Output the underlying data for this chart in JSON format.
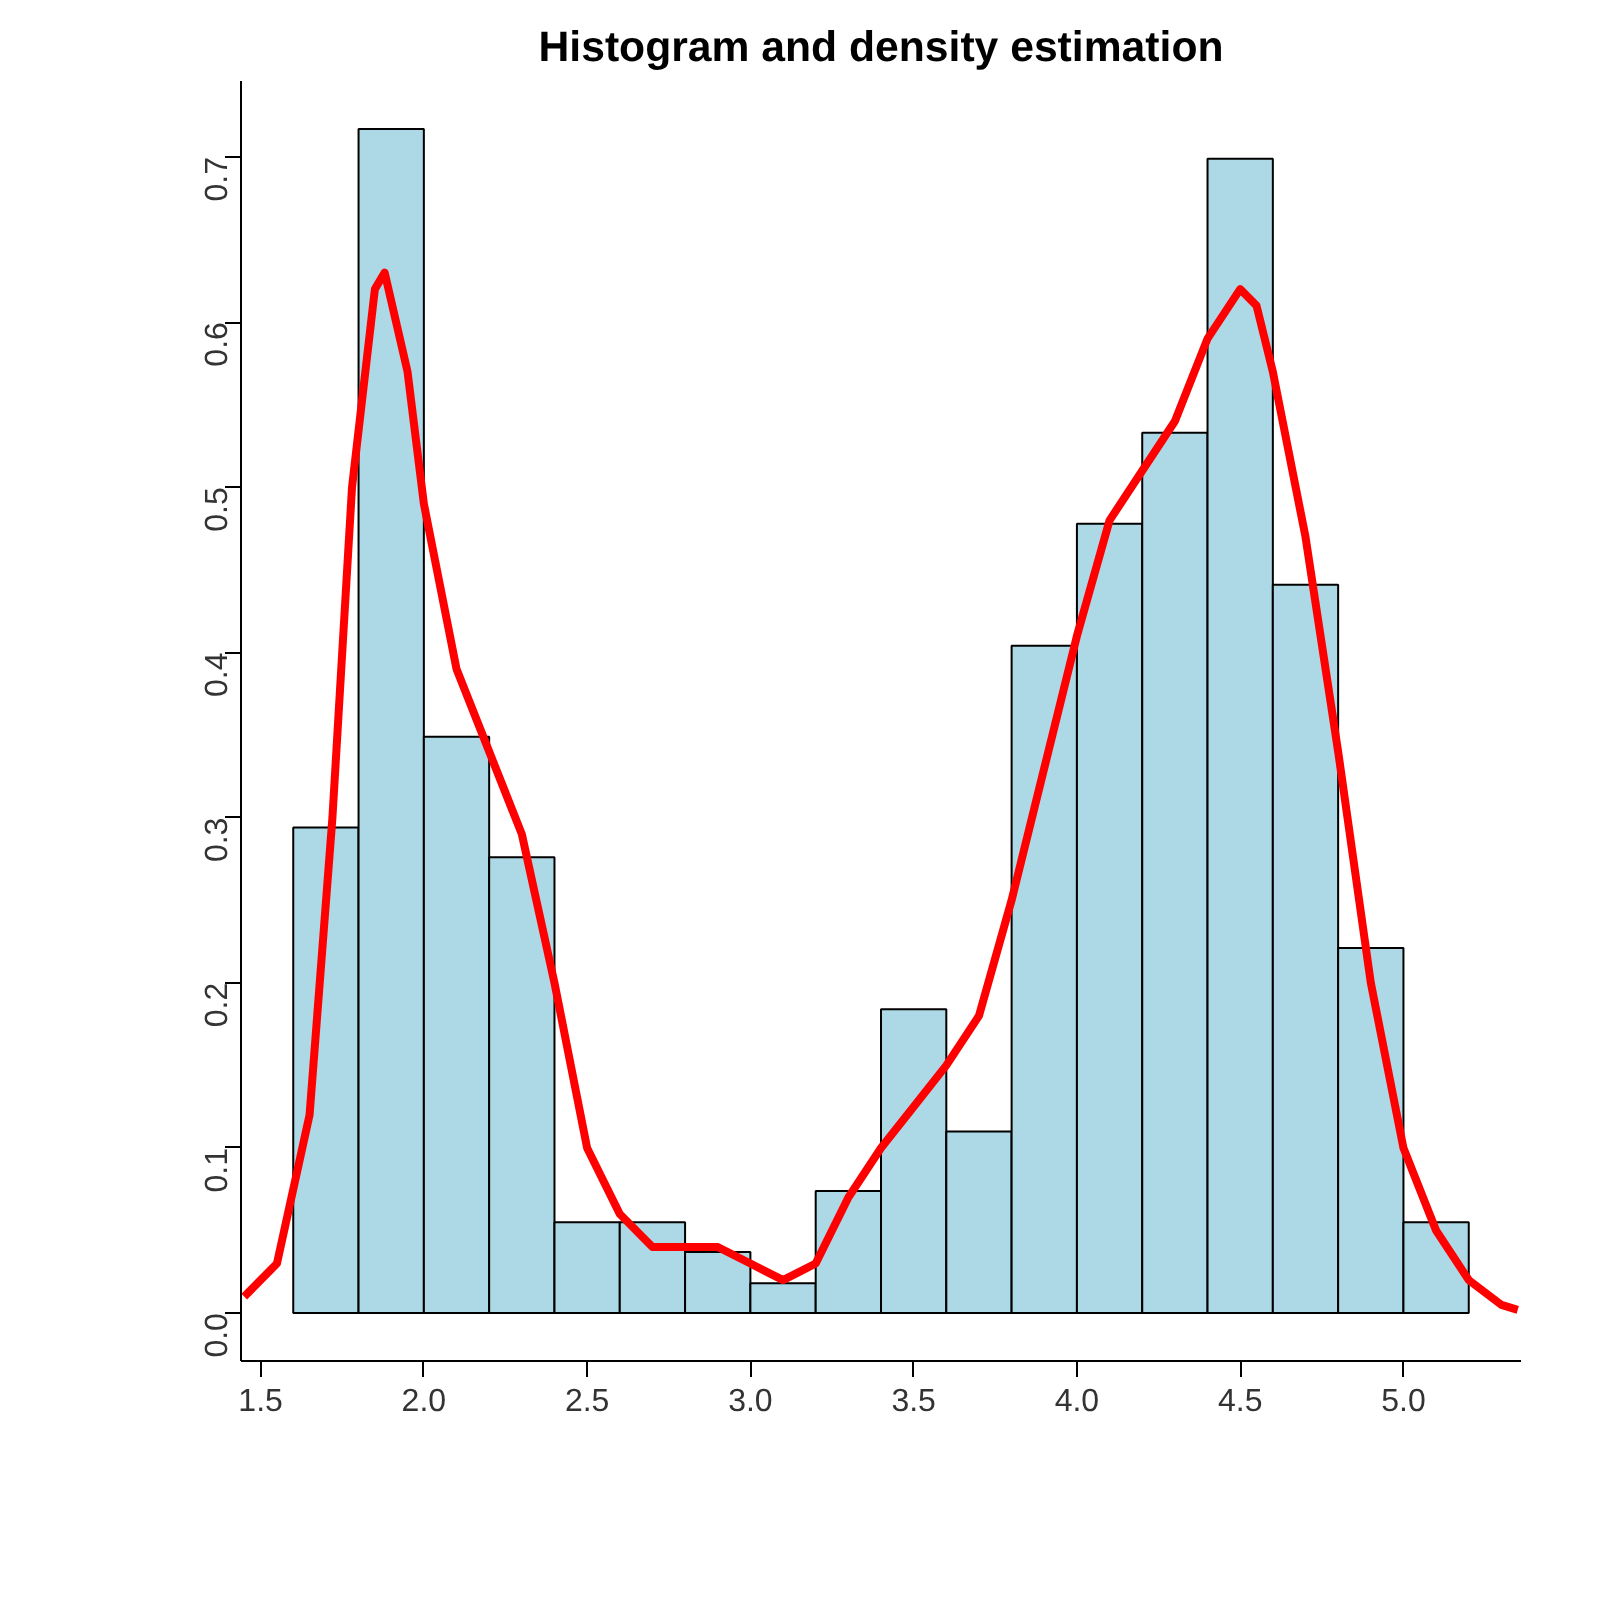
{
  "chart_data": {
    "type": "histogram",
    "title": "Histogram and density estimation",
    "bins": [
      1.6,
      1.8,
      2.0,
      2.2,
      2.4,
      2.6,
      2.8,
      3.0,
      3.2,
      3.4,
      3.6,
      3.8,
      4.0,
      4.2,
      4.4,
      4.6,
      4.8,
      5.0,
      5.2
    ],
    "values": [
      0.294,
      0.717,
      0.349,
      0.276,
      0.055,
      0.055,
      0.037,
      0.018,
      0.074,
      0.184,
      0.11,
      0.404,
      0.478,
      0.533,
      0.699,
      0.441,
      0.221,
      0.055
    ],
    "color": "#add8e6",
    "series": [
      {
        "type": "line",
        "color": "#ff0000",
        "x": [
          1.45,
          1.55,
          1.65,
          1.72,
          1.78,
          1.85,
          1.88,
          1.95,
          2.0,
          2.1,
          2.2,
          2.3,
          2.4,
          2.5,
          2.6,
          2.7,
          2.8,
          2.9,
          3.0,
          3.1,
          3.2,
          3.3,
          3.4,
          3.5,
          3.6,
          3.7,
          3.8,
          3.9,
          4.0,
          4.1,
          4.2,
          4.3,
          4.4,
          4.5,
          4.55,
          4.6,
          4.7,
          4.8,
          4.9,
          5.0,
          5.1,
          5.2,
          5.3,
          5.35
        ],
        "values": [
          0.01,
          0.03,
          0.12,
          0.3,
          0.5,
          0.62,
          0.63,
          0.57,
          0.49,
          0.39,
          0.34,
          0.29,
          0.2,
          0.1,
          0.06,
          0.04,
          0.04,
          0.04,
          0.03,
          0.02,
          0.03,
          0.07,
          0.1,
          0.125,
          0.15,
          0.18,
          0.25,
          0.33,
          0.41,
          0.48,
          0.51,
          0.54,
          0.59,
          0.62,
          0.61,
          0.57,
          0.47,
          0.34,
          0.2,
          0.1,
          0.05,
          0.02,
          0.005,
          0.002
        ]
      }
    ],
    "xlim": [
      1.44,
      5.36
    ],
    "ylim": [
      -0.029,
      0.746
    ],
    "xticks": [
      1.5,
      {
        "value": 2,
        "label": "2.0"
      },
      2.5,
      {
        "value": 3,
        "label": "3.0"
      },
      3.5,
      {
        "value": 4,
        "label": "4.0"
      },
      4.5,
      {
        "value": 5,
        "label": "5.0"
      }
    ],
    "yticks": [
      {
        "value": 0,
        "label": "0.0"
      },
      0.1,
      0.2,
      0.3,
      0.4,
      0.5,
      0.6,
      0.7
    ],
    "grid": false
  }
}
